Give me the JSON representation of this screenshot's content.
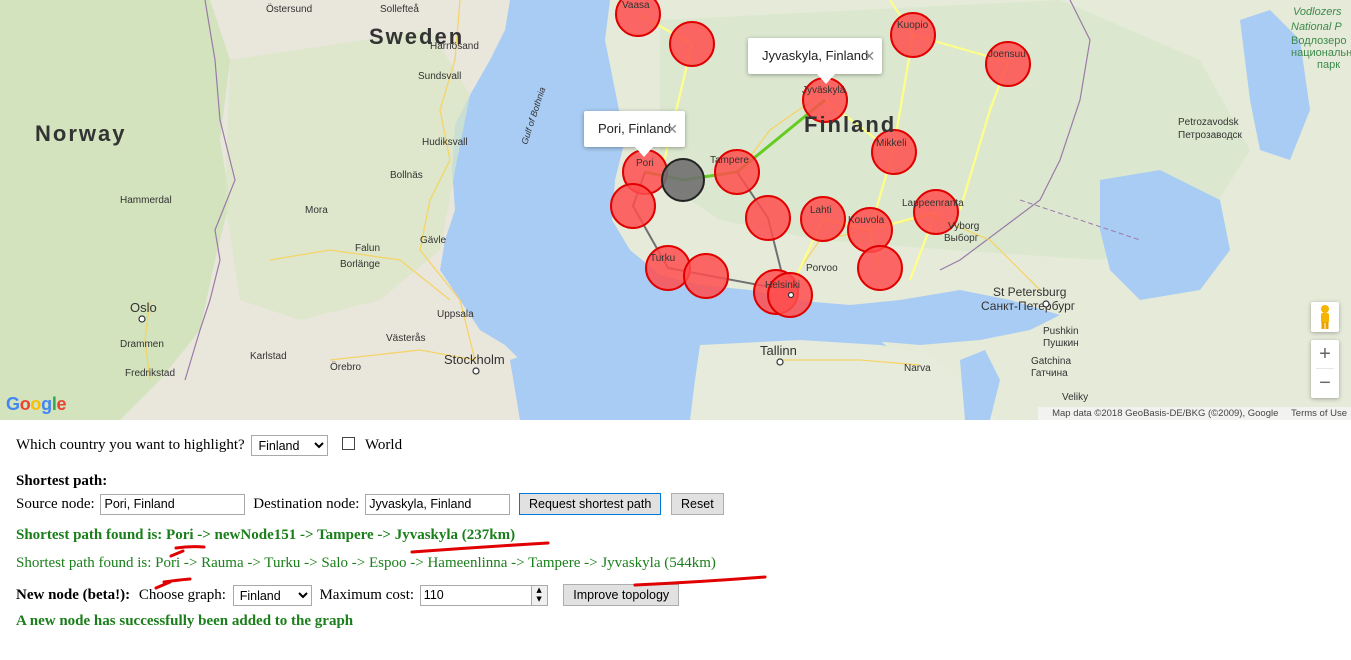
{
  "map": {
    "popups": {
      "pori": "Pori, Finland",
      "jyvaskyla": "Jyvaskyla, Finland"
    },
    "labels": {
      "sweden": "Sweden",
      "norway": "Norway",
      "finland": "Finland",
      "gulf": "Gulf of Bothnia",
      "sundsvall": "Sundsvall",
      "harnosand": "Härnösand",
      "sollefteaa": "Sollefteå",
      "ostersund": "Östersund",
      "hudiksvall": "Hudiksvall",
      "bollnas": "Bollnäs",
      "hammerdal": "Hammerdal",
      "mora": "Mora",
      "falun": "Falun",
      "gavle": "Gävle",
      "borlange": "Borlänge",
      "uppsala": "Uppsala",
      "vasteras": "Västerås",
      "stockholm": "Stockholm",
      "orebro": "Örebro",
      "karlstad": "Karlstad",
      "oslo": "Oslo",
      "drammen": "Drammen",
      "fredrikstad": "Fredrikstad",
      "vaasa": "Vaasa",
      "pori": "Pori",
      "tampere": "Tampere",
      "jyvaskyla": "Jyväskylä",
      "kuopio": "Kuopio",
      "joensuu": "Joensuu",
      "mikkeli": "Mikkeli",
      "lahti": "Lahti",
      "kouvola": "Kouvola",
      "lappeenranta": "Lappeenranta",
      "vyborg": "Vyborg",
      "vyborg_ru": "Выборг",
      "turku": "Turku",
      "helsinki": "Helsinki",
      "porvoo": "Porvoo",
      "tallinn": "Tallinn",
      "stpetersburg": "St Petersburg",
      "stpetersburg_ru": "Санкт-Петербург",
      "pushkin": "Pushkin",
      "pushkin_ru": "Пушкин",
      "gatchina": "Gatchina",
      "gatchina_ru": "Гатчина",
      "narva": "Narva",
      "veliky": "Veliky",
      "petrozavodsk": "Petrozavodsk",
      "petrozavodsk_ru": "Петрозаводск",
      "vodlozero1": "Vodlozers",
      "vodlozero2": "National P",
      "vodlozero3": "Водлозеро",
      "vodlozero4": "национальн",
      "vodlozero5": "парк"
    },
    "google_logo": [
      "G",
      "o",
      "o",
      "g",
      "l",
      "e"
    ],
    "attribution": "Map data ©2018 GeoBasis-DE/BKG (©2009), Google",
    "terms": "Terms of Use",
    "zoom_in": "+",
    "zoom_out": "−"
  },
  "controls": {
    "highlight_label": "Which country you want to highlight?",
    "highlight_value": "Finland",
    "world_label": "World",
    "shortest_path_title": "Shortest path:",
    "source_label": "Source node:",
    "source_value": "Pori, Finland",
    "dest_label": "Destination node:",
    "dest_value": "Jyvaskyla, Finland",
    "request_button": "Request shortest path",
    "reset_button": "Reset",
    "result1_prefix": "Shortest path found is: ",
    "result1_path": "Pori -> newNode151 -> Tampere -> Jyvaskyla (237km)",
    "result2_prefix": "Shortest path found is: ",
    "result2_path": "Pori -> Rauma -> Turku -> Salo -> Espoo -> Hameenlinna -> Tampere -> Jyvaskyla (544km)",
    "new_node_label": "New node (beta!):",
    "choose_graph_label": "Choose graph:",
    "graph_value": "Finland",
    "max_cost_label": "Maximum cost:",
    "max_cost_value": "110",
    "improve_button": "Improve topology",
    "success_message": "A new node has successfully been added to the graph"
  },
  "colors": {
    "water": "#a8ccf3",
    "land": "#ece8df",
    "forest": "#cfe3bb",
    "node_fill": "#ff4d4d",
    "node_stroke": "#e00000",
    "new_node": "#707070",
    "green_path": "#66cc22",
    "grey_path": "#707070",
    "yellow_edge": "#ffff88",
    "text_green": "#1a7e1a",
    "annotation_red": "#e00000"
  }
}
